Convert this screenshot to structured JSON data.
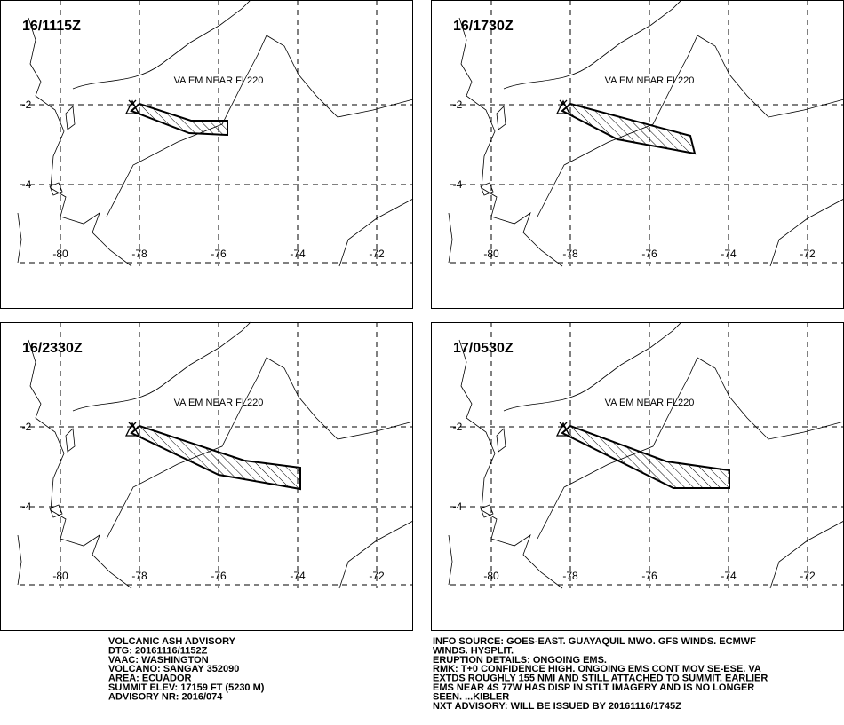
{
  "panels": [
    {
      "time": "16/1115Z",
      "label": "VA EM NEAR FL220"
    },
    {
      "time": "16/1730Z",
      "label": "VA EM NEAR FL220"
    },
    {
      "time": "16/2330Z",
      "label": "VA EM NEAR FL220"
    },
    {
      "time": "17/0530Z",
      "label": "VA EM NEAR FL220"
    }
  ],
  "lon_labels": [
    "-80",
    "-78",
    "-76",
    "-74",
    "-72"
  ],
  "lat_labels": [
    "-2",
    "-4"
  ],
  "advisory_left": [
    "VOLCANIC ASH ADVISORY",
    "DTG: 20161116/1152Z",
    "VAAC: WASHINGTON",
    "VOLCANO: SANGAY 352090",
    "AREA: ECUADOR",
    "SUMMIT ELEV: 17159 FT (5230 M)",
    "ADVISORY NR: 2016/074"
  ],
  "advisory_right": [
    "INFO SOURCE: GOES-EAST. GUAYAQUIL MWO. GFS WINDS. ECMWF",
    "WINDS. HYSPLIT.",
    "ERUPTION DETAILS: ONGOING EMS.",
    "RMK: T+0 CONFIDENCE HIGH. ONGOING EMS CONT MOV SE-ESE. VA",
    "EXTDS ROUGHLY 155 NMI AND STILL ATTACHED TO SUMMIT. EARLIER",
    "EMS NEAR 4S 77W HAS DISP IN STLT IMAGERY AND IS NO LONGER",
    "SEEN. ...KIBLER",
    "NXT ADVISORY: WILL BE ISSUED BY 20161116/1745Z"
  ]
}
